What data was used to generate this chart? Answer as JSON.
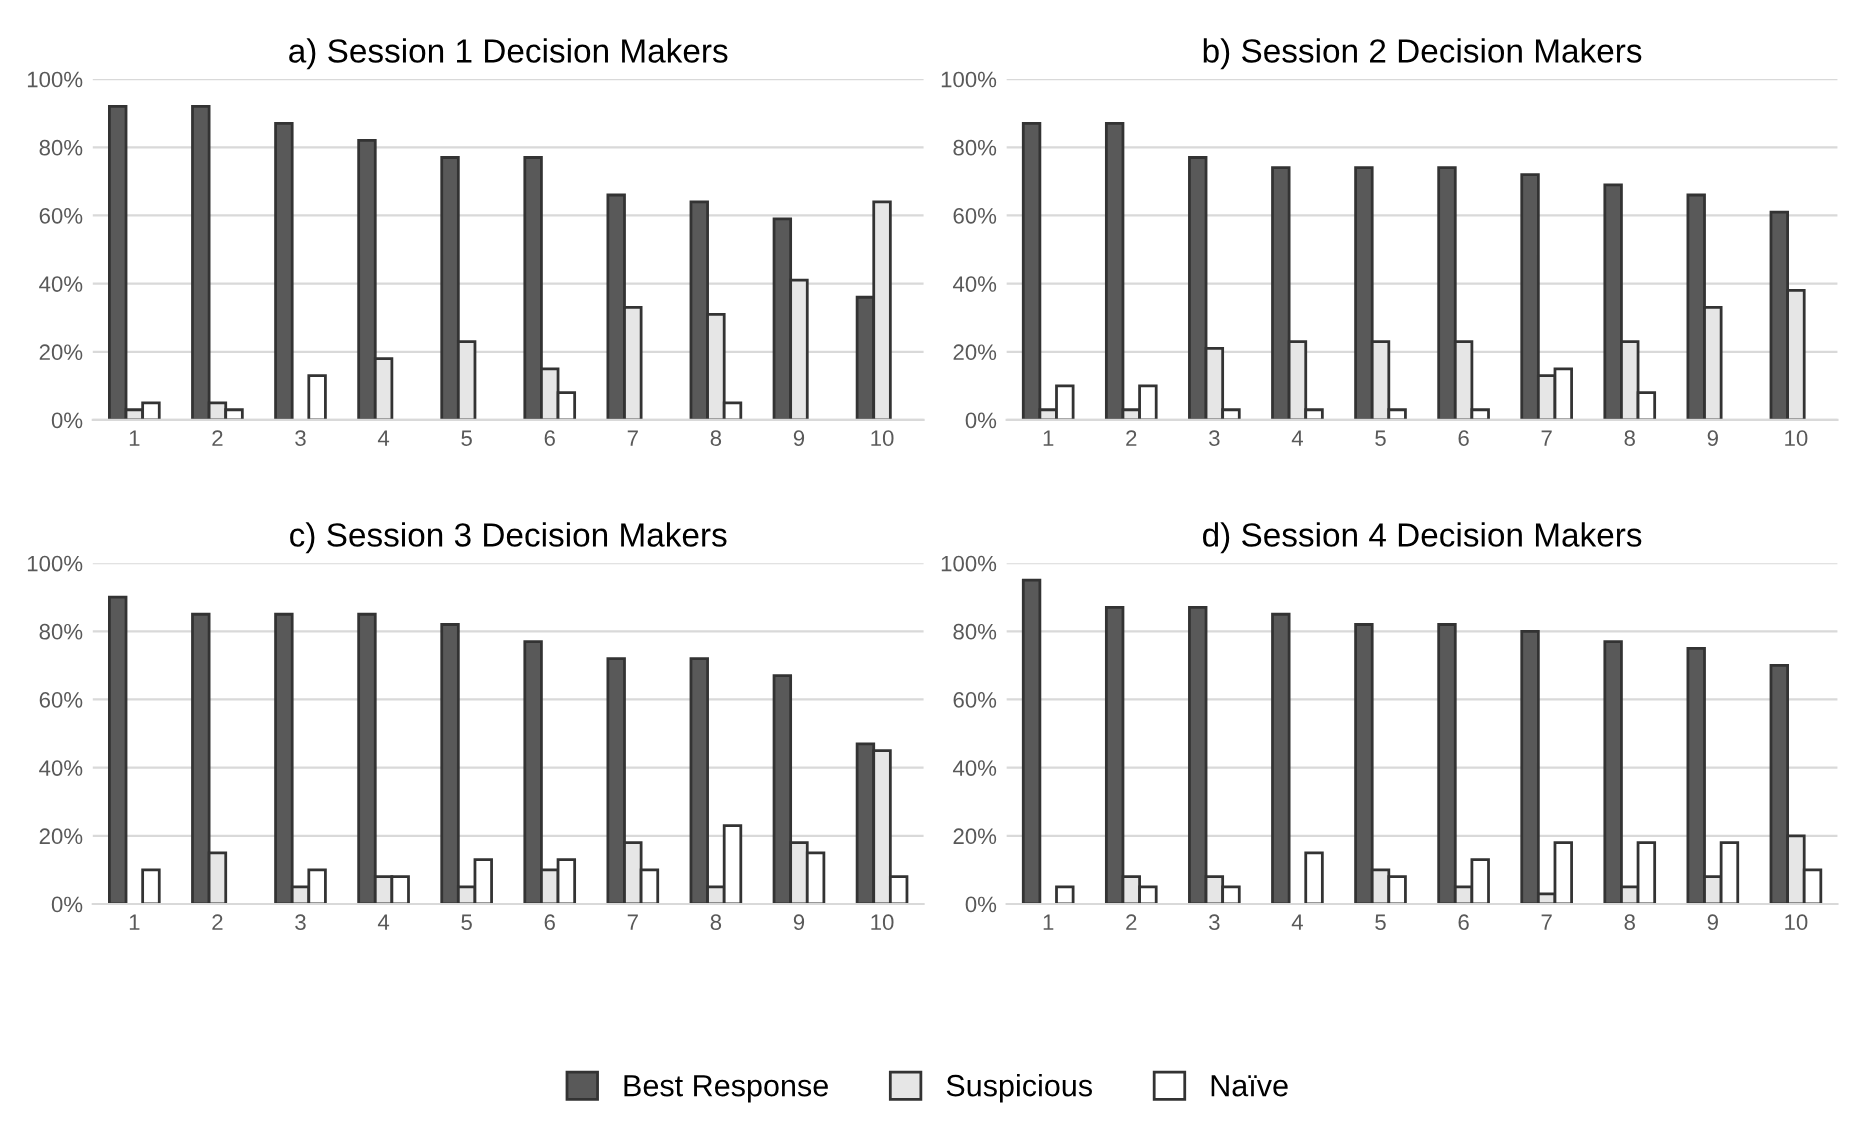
{
  "chart_data": [
    {
      "type": "bar",
      "title": "a) Session 1 Decision Makers",
      "categories": [
        "1",
        "2",
        "3",
        "4",
        "5",
        "6",
        "7",
        "8",
        "9",
        "10"
      ],
      "ylim": [
        0,
        100
      ],
      "yticks": [
        {
          "value": 0,
          "label": "0%"
        },
        {
          "value": 20,
          "label": "20%"
        },
        {
          "value": 40,
          "label": "40%"
        },
        {
          "value": 60,
          "label": "60%"
        },
        {
          "value": 80,
          "label": "80%"
        },
        {
          "value": 100,
          "label": "100%"
        }
      ],
      "grid": "y",
      "legend": "bottom",
      "series": [
        {
          "name": "Best Response",
          "color": "#595959",
          "values": [
            92,
            92,
            87,
            82,
            77,
            77,
            66,
            64,
            59,
            36
          ]
        },
        {
          "name": "Suspicious",
          "color": "#e6e6e6",
          "values": [
            3,
            5,
            null,
            18,
            23,
            15,
            33,
            31,
            41,
            64
          ]
        },
        {
          "name": "Naïve",
          "color": "#ffffff",
          "values": [
            5,
            3,
            13,
            null,
            null,
            8,
            null,
            5,
            null,
            null
          ]
        }
      ]
    },
    {
      "type": "bar",
      "title": "b) Session 2 Decision Makers",
      "categories": [
        "1",
        "2",
        "3",
        "4",
        "5",
        "6",
        "7",
        "8",
        "9",
        "10"
      ],
      "ylim": [
        0,
        100
      ],
      "yticks": [
        {
          "value": 0,
          "label": "0%"
        },
        {
          "value": 20,
          "label": "20%"
        },
        {
          "value": 40,
          "label": "40%"
        },
        {
          "value": 60,
          "label": "60%"
        },
        {
          "value": 80,
          "label": "80%"
        },
        {
          "value": 100,
          "label": "100%"
        }
      ],
      "grid": "y",
      "series": [
        {
          "color": "#595959",
          "values": [
            87,
            87,
            77,
            74,
            74,
            74,
            72,
            69,
            66,
            61
          ]
        },
        {
          "color": "#e6e6e6",
          "values": [
            3,
            3,
            21,
            23,
            23,
            23,
            13,
            23,
            33,
            38
          ]
        },
        {
          "color": "#ffffff",
          "values": [
            10,
            10,
            3,
            3,
            3,
            3,
            15,
            8,
            null,
            null
          ]
        }
      ]
    },
    {
      "type": "bar",
      "title": "c) Session 3 Decision Makers",
      "categories": [
        "1",
        "2",
        "3",
        "4",
        "5",
        "6",
        "7",
        "8",
        "9",
        "10"
      ],
      "ylim": [
        0,
        100
      ],
      "yticks": [
        {
          "value": 0,
          "label": "0%"
        },
        {
          "value": 20,
          "label": "20%"
        },
        {
          "value": 40,
          "label": "40%"
        },
        {
          "value": 60,
          "label": "60%"
        },
        {
          "value": 80,
          "label": "80%"
        },
        {
          "value": 100,
          "label": "100%"
        }
      ],
      "grid": "y",
      "series": [
        {
          "color": "#595959",
          "values": [
            90,
            85,
            85,
            85,
            82,
            77,
            72,
            72,
            67,
            47
          ]
        },
        {
          "color": "#e6e6e6",
          "values": [
            null,
            15,
            5,
            8,
            5,
            10,
            18,
            5,
            18,
            45
          ]
        },
        {
          "color": "#ffffff",
          "values": [
            10,
            null,
            10,
            8,
            13,
            13,
            10,
            23,
            15,
            8
          ]
        }
      ]
    },
    {
      "type": "bar",
      "title": "d) Session 4 Decision Makers",
      "categories": [
        "1",
        "2",
        "3",
        "4",
        "5",
        "6",
        "7",
        "8",
        "9",
        "10"
      ],
      "ylim": [
        0,
        100
      ],
      "yticks": [
        {
          "value": 0,
          "label": "0%"
        },
        {
          "value": 20,
          "label": "20%"
        },
        {
          "value": 40,
          "label": "40%"
        },
        {
          "value": 60,
          "label": "60%"
        },
        {
          "value": 80,
          "label": "80%"
        },
        {
          "value": 100,
          "label": "100%"
        }
      ],
      "grid": "y",
      "series": [
        {
          "color": "#595959",
          "values": [
            95,
            87,
            87,
            85,
            82,
            82,
            80,
            77,
            75,
            70
          ]
        },
        {
          "color": "#e6e6e6",
          "values": [
            null,
            8,
            8,
            null,
            10,
            5,
            3,
            5,
            8,
            20
          ]
        },
        {
          "color": "#ffffff",
          "values": [
            5,
            5,
            5,
            15,
            8,
            13,
            18,
            18,
            18,
            10
          ]
        }
      ]
    }
  ]
}
